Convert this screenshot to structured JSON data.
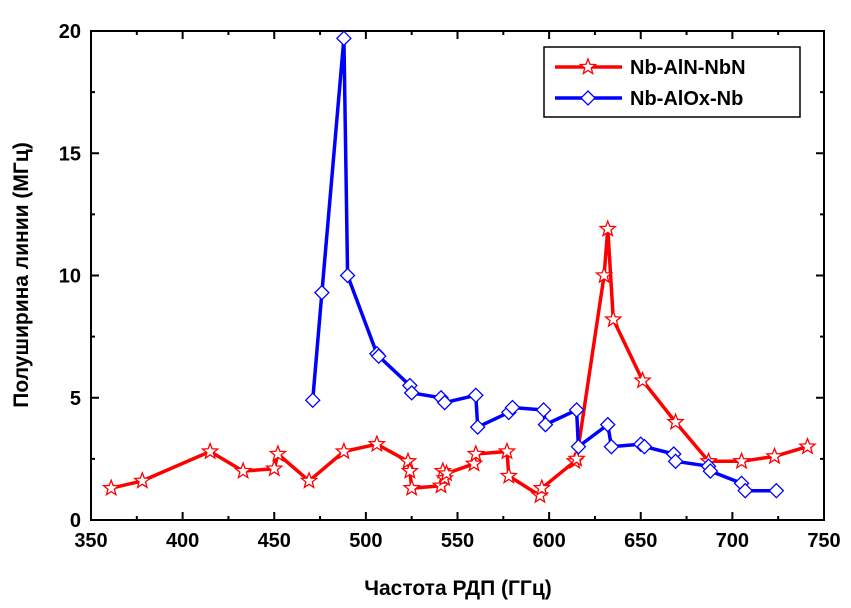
{
  "chart_data": {
    "type": "line",
    "xlabel": "Частота РДП (ГГц)",
    "ylabel": "Полуширина линии (МГц)",
    "xlim": [
      350,
      750
    ],
    "ylim": [
      0,
      20
    ],
    "x_ticks": [
      350,
      400,
      450,
      500,
      550,
      600,
      650,
      700,
      750
    ],
    "y_ticks": [
      0,
      5,
      10,
      15,
      20
    ],
    "grid": false,
    "legend_position": "top-right",
    "series": [
      {
        "name": "Nb-AlN-NbN",
        "color": "#ff0000",
        "marker": "star",
        "x": [
          361,
          378,
          415,
          433,
          450,
          452,
          469,
          488,
          506,
          523,
          524,
          525,
          541,
          542,
          543,
          544,
          559,
          560,
          577,
          578,
          595,
          596,
          614,
          615,
          630,
          632,
          635,
          651,
          669,
          687,
          705,
          723,
          741
        ],
        "y": [
          1.3,
          1.6,
          2.8,
          2.0,
          2.1,
          2.7,
          1.6,
          2.8,
          3.1,
          2.4,
          2.0,
          1.3,
          1.4,
          2.0,
          1.7,
          1.9,
          2.3,
          2.7,
          2.8,
          1.8,
          1.0,
          1.3,
          2.4,
          2.5,
          10.0,
          11.9,
          8.2,
          5.7,
          4.0,
          2.4,
          2.4,
          2.6,
          3.0
        ]
      },
      {
        "name": "Nb-AlOx-Nb",
        "color": "#0000ff",
        "marker": "diamond",
        "x": [
          471,
          476,
          488,
          490,
          506,
          507,
          524,
          525,
          541,
          543,
          560,
          561,
          578,
          580,
          597,
          598,
          615,
          616,
          632,
          634,
          650,
          652,
          668,
          669,
          687,
          688,
          705,
          707,
          724
        ],
        "y": [
          4.9,
          9.3,
          19.7,
          10.0,
          6.8,
          6.7,
          5.5,
          5.2,
          5.0,
          4.8,
          5.1,
          3.8,
          4.4,
          4.6,
          4.5,
          3.9,
          4.5,
          3.0,
          3.9,
          3.0,
          3.1,
          3.0,
          2.7,
          2.4,
          2.2,
          2.0,
          1.5,
          1.2,
          1.2
        ]
      }
    ]
  }
}
